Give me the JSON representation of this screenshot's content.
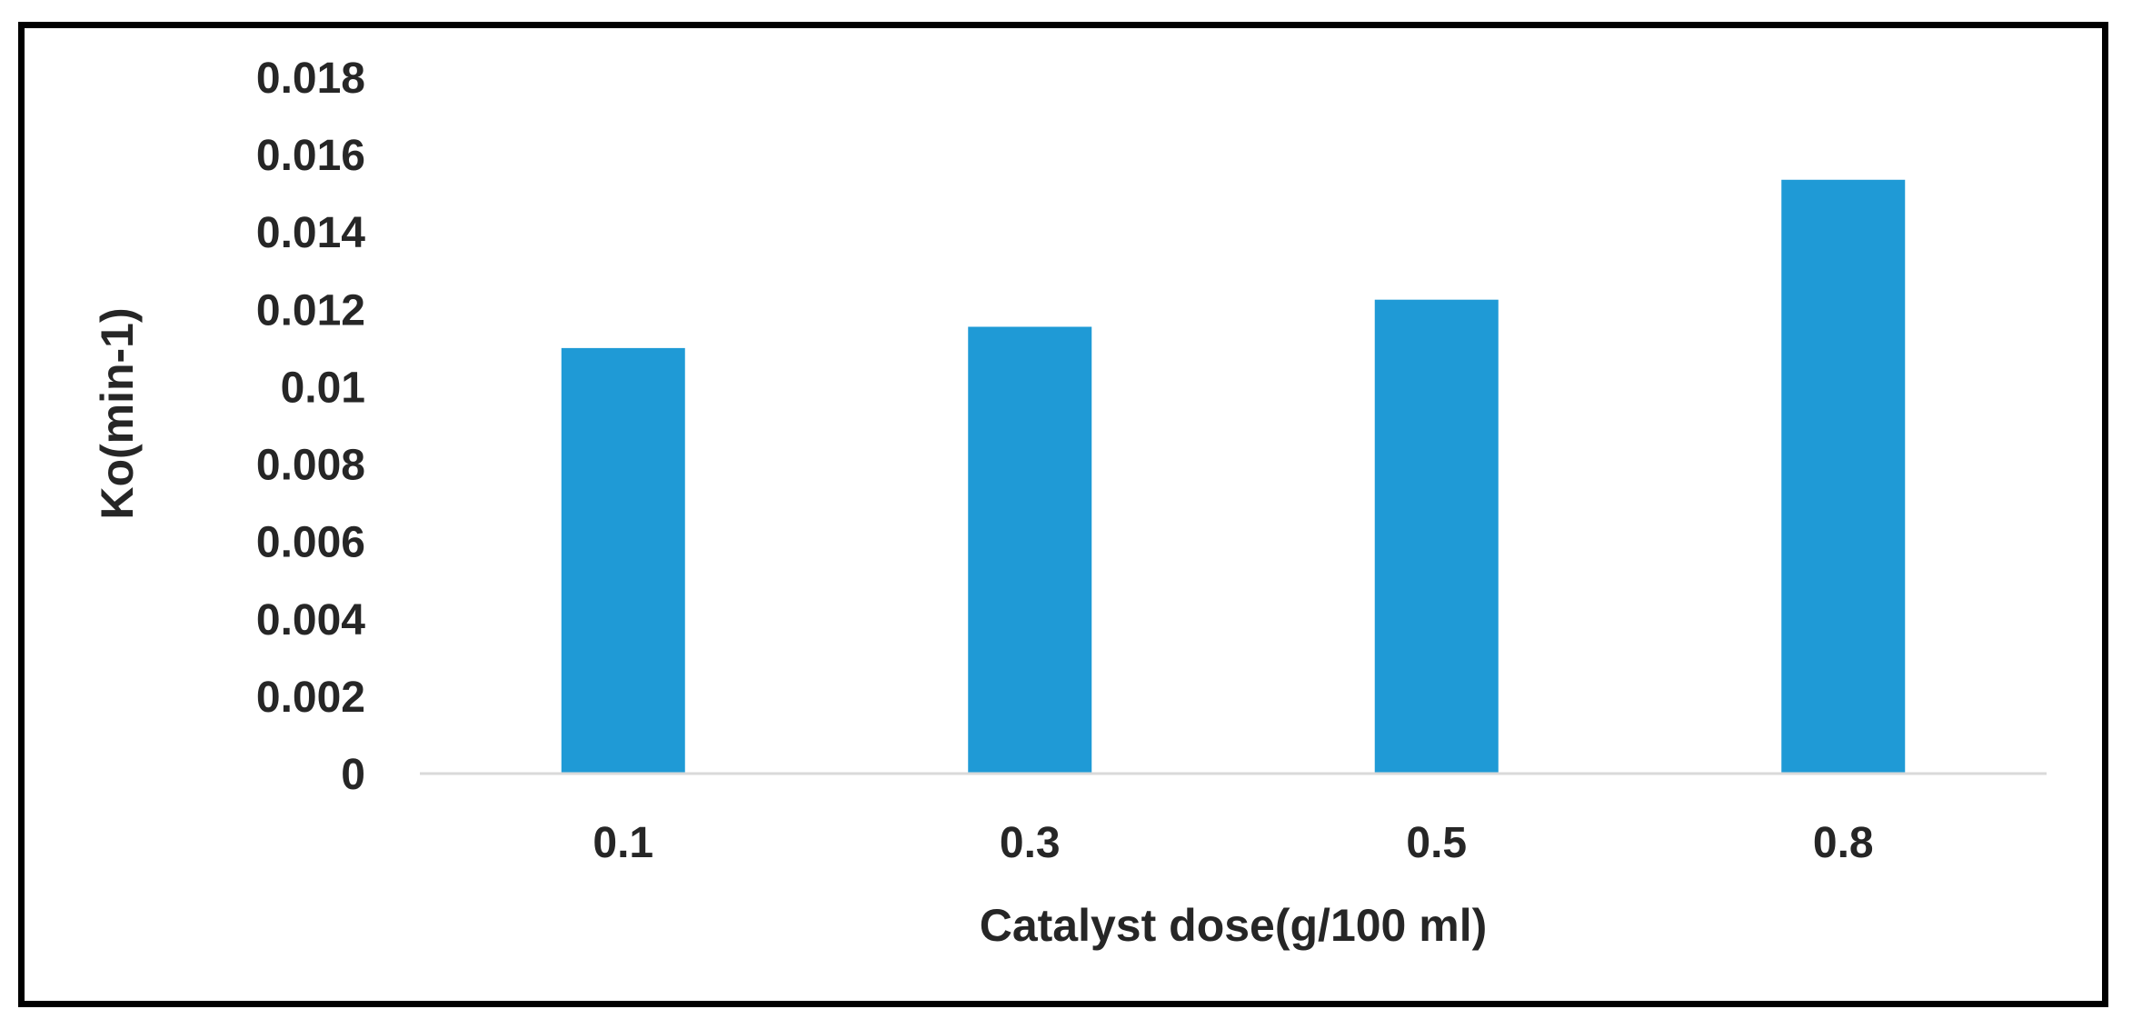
{
  "chart_data": {
    "type": "bar",
    "categories": [
      "0.1",
      "0.3",
      "0.5",
      "0.8"
    ],
    "values": [
      0.011,
      0.01155,
      0.01225,
      0.01535
    ],
    "xlabel": "Catalyst dose(g/100 ml)",
    "ylabel": "Ko(min-1)",
    "ylim": [
      0,
      0.018
    ],
    "yticks": [
      "0",
      "0.002",
      "0.004",
      "0.006",
      "0.008",
      "0.01",
      "0.012",
      "0.014",
      "0.016",
      "0.018"
    ],
    "grid": false,
    "legend": "none",
    "colors": {
      "bar": "#1f9ad6",
      "axis_line": "#d9d9d9",
      "text": "#262626",
      "frame": "#000000"
    }
  }
}
